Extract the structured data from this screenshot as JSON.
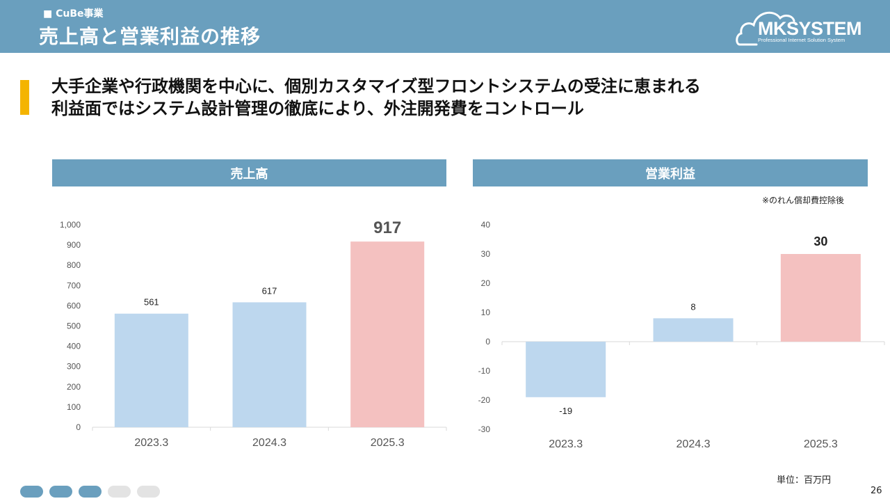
{
  "header": {
    "section_label": "■ CuBe事業",
    "title": "売上高と営業利益の推移",
    "logo_text": "MKSYSTEM",
    "logo_sub": "Professional Internet Solution System"
  },
  "lead": {
    "line1": "大手企業や行政機関を中心に、個別カスタマイズ型フロントシステムの受注に恵まれる",
    "line2": "利益面ではシステム設計管理の徹底により、外注開発費をコントロール"
  },
  "colors": {
    "header_bg": "#6a9fbe",
    "accent": "#f4b400",
    "bar_default": "#bdd7ee",
    "bar_highlight": "#f4c1c0"
  },
  "panels": {
    "sales_title": "売上高",
    "profit_title": "営業利益",
    "profit_note": "※のれん償却費控除後"
  },
  "chart_data": [
    {
      "type": "bar",
      "title": "売上高",
      "categories": [
        "2023.3",
        "2024.3",
        "2025.3"
      ],
      "values": [
        561,
        617,
        917
      ],
      "value_labels": [
        "561",
        "617",
        "917"
      ],
      "highlight_index": 2,
      "ylim": [
        0,
        1000
      ],
      "yticks": [
        0,
        100,
        200,
        300,
        400,
        500,
        600,
        700,
        800,
        900,
        1000
      ],
      "ytick_labels": [
        "0",
        "100",
        "200",
        "300",
        "400",
        "500",
        "600",
        "700",
        "800",
        "900",
        "1,000"
      ],
      "xlabel": "",
      "ylabel": "",
      "grid": false
    },
    {
      "type": "bar",
      "title": "営業利益",
      "categories": [
        "2023.3",
        "2024.3",
        "2025.3"
      ],
      "values": [
        -19,
        8,
        30
      ],
      "value_labels": [
        "-19",
        "8",
        "30"
      ],
      "highlight_index": 2,
      "ylim": [
        -30,
        40
      ],
      "yticks": [
        -30,
        -20,
        -10,
        0,
        10,
        20,
        30,
        40
      ],
      "ytick_labels": [
        "-30",
        "-20",
        "-10",
        "0",
        "10",
        "20",
        "30",
        "40"
      ],
      "xlabel": "",
      "ylabel": "",
      "grid": false
    }
  ],
  "footer": {
    "unit": "単位：百万円",
    "page_number": "26",
    "progress_total": 5,
    "progress_active": 3
  }
}
